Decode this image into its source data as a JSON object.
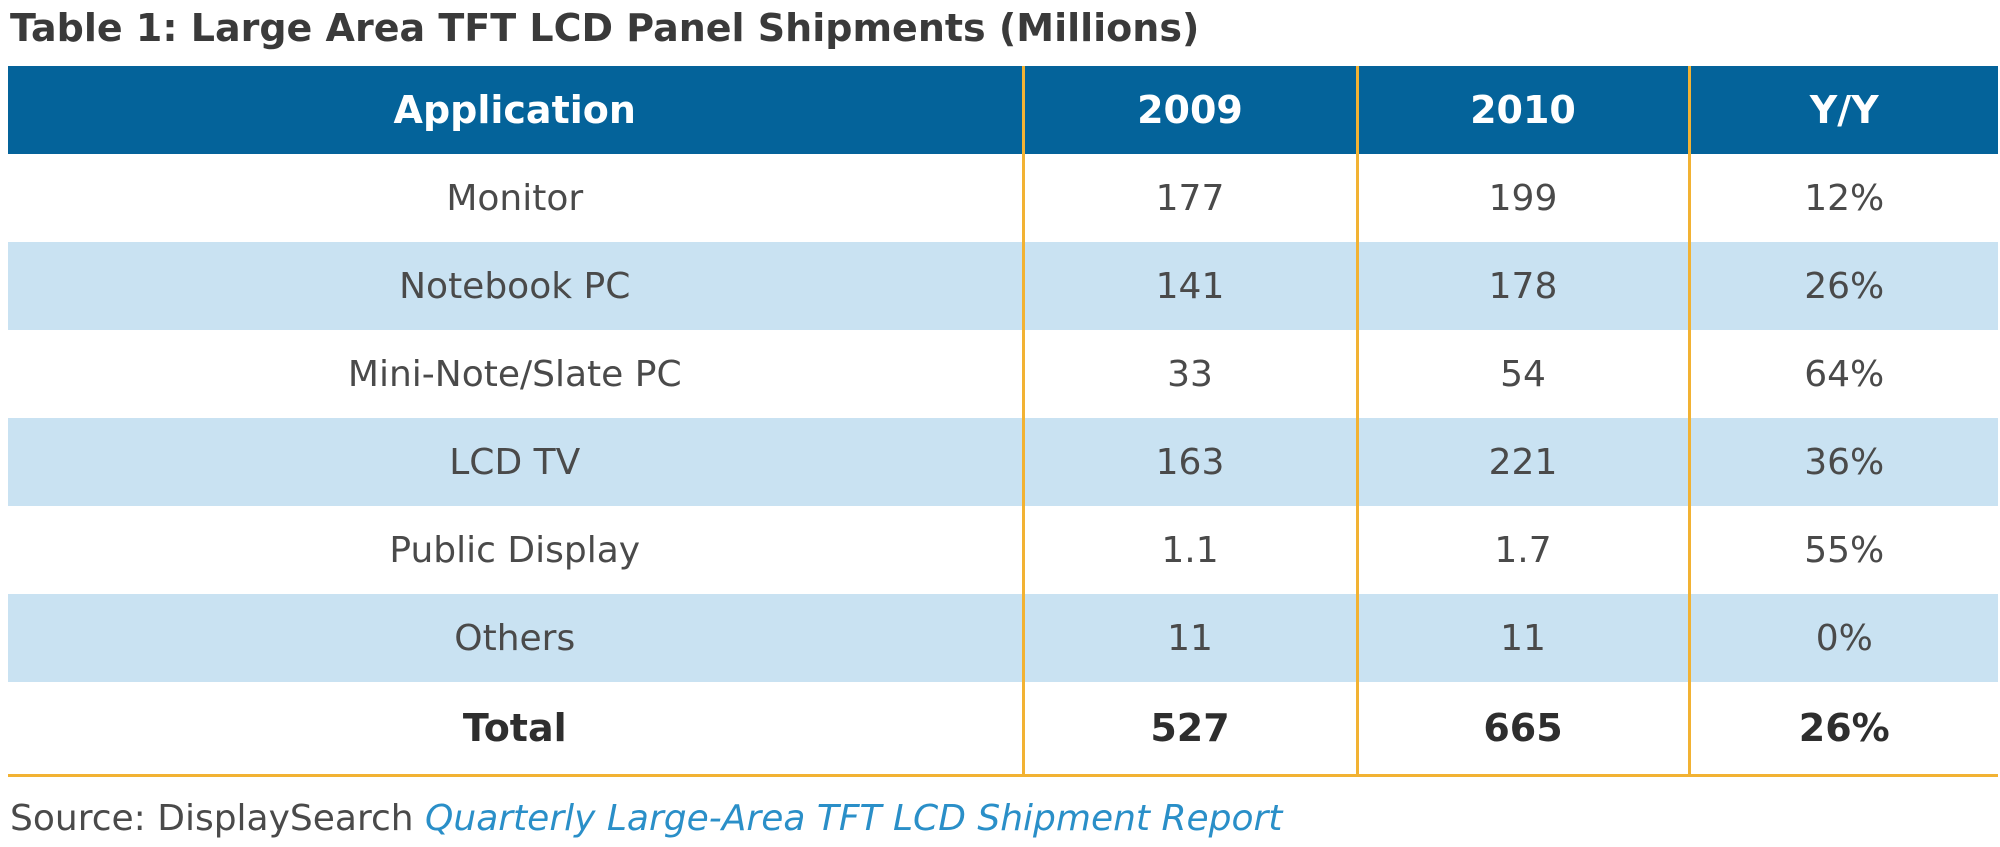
{
  "title": "Table 1: Large Area TFT LCD Panel Shipments (Millions)",
  "table": {
    "headers": [
      "Application",
      "2009",
      "2010",
      "Y/Y"
    ],
    "rows": [
      {
        "application": "Monitor",
        "y2009": "177",
        "y2010": "199",
        "yoy": "12%"
      },
      {
        "application": "Notebook PC",
        "y2009": "141",
        "y2010": "178",
        "yoy": "26%"
      },
      {
        "application": "Mini-Note/Slate PC",
        "y2009": "33",
        "y2010": "54",
        "yoy": "64%"
      },
      {
        "application": "LCD TV",
        "y2009": "163",
        "y2010": "221",
        "yoy": "36%"
      },
      {
        "application": "Public Display",
        "y2009": "1.1",
        "y2010": "1.7",
        "yoy": "55%"
      },
      {
        "application": "Others",
        "y2009": "11",
        "y2010": "11",
        "yoy": "0%"
      }
    ],
    "total": {
      "label": "Total",
      "y2009": "527",
      "y2010": "665",
      "yoy": "26%"
    }
  },
  "source": {
    "prefix": "Source: DisplaySearch",
    "report": "Quarterly Large-Area TFT LCD Shipment Report"
  },
  "colors": {
    "header_bg": "#04639a",
    "header_text": "#ffffff",
    "alt_row_bg": "#c9e2f2",
    "divider": "#f2b233",
    "source_link": "#2a8fc8"
  }
}
